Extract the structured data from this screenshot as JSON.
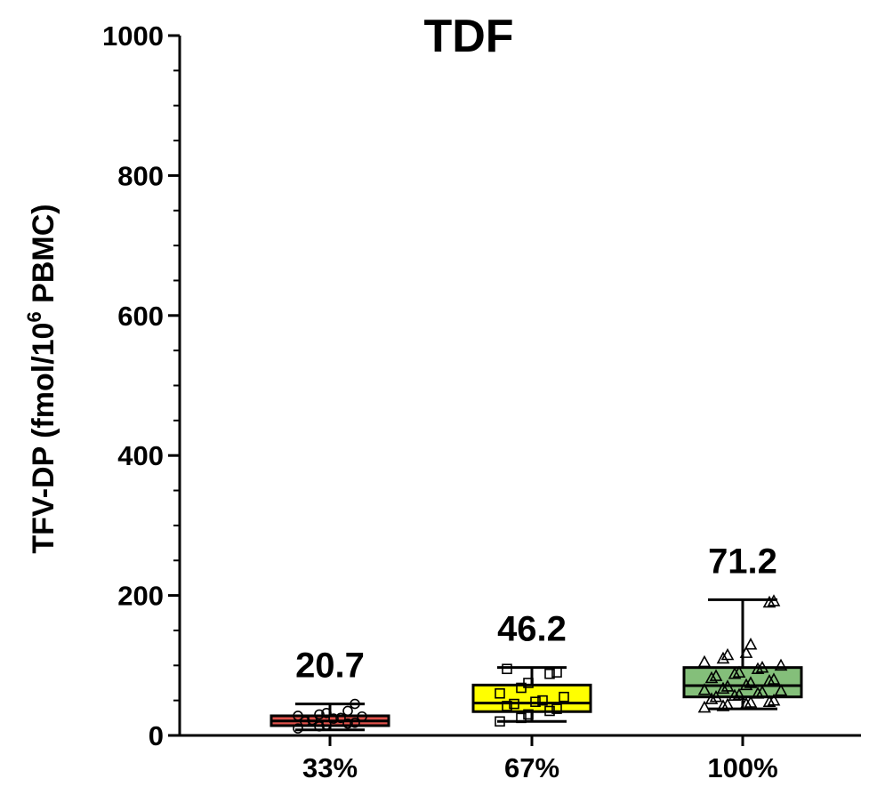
{
  "chart_data": {
    "type": "box",
    "title": "TDF",
    "ylabel_main": "TFV-DP (fmol/10",
    "ylabel_sup": "6",
    "ylabel_end": " PBMC)",
    "ylim": [
      0,
      1000
    ],
    "yticks": [
      0,
      200,
      400,
      600,
      800,
      1000
    ],
    "y_minor_step": 50,
    "categories": [
      "33%",
      "67%",
      "100%"
    ],
    "boxes": [
      {
        "category": "33%",
        "min": 8,
        "q1": 14,
        "median": 20.7,
        "q3": 28,
        "max": 45,
        "label": "20.7",
        "fill": "#e0524b",
        "marker": "circle",
        "points": [
          10,
          13,
          15,
          17,
          18,
          20,
          22,
          24,
          25,
          27,
          28,
          30,
          32,
          35,
          45
        ]
      },
      {
        "category": "67%",
        "min": 20,
        "q1": 34,
        "median": 46.2,
        "q3": 72,
        "max": 97,
        "label": "46.2",
        "fill": "#ffff00",
        "marker": "square",
        "points": [
          20,
          25,
          30,
          35,
          38,
          42,
          45,
          48,
          50,
          55,
          60,
          68,
          75,
          88,
          90,
          95
        ]
      },
      {
        "category": "100%",
        "min": 38,
        "q1": 55,
        "median": 71.2,
        "q3": 97,
        "max": 194,
        "label": "71.2",
        "fill": "#84bf7a",
        "marker": "triangle",
        "points": [
          40,
          42,
          44,
          45,
          47,
          48,
          50,
          52,
          55,
          57,
          58,
          60,
          62,
          64,
          65,
          67,
          70,
          72,
          75,
          78,
          80,
          82,
          85,
          88,
          90,
          95,
          97,
          100,
          105,
          110,
          115,
          118,
          130,
          190,
          192
        ]
      }
    ]
  }
}
